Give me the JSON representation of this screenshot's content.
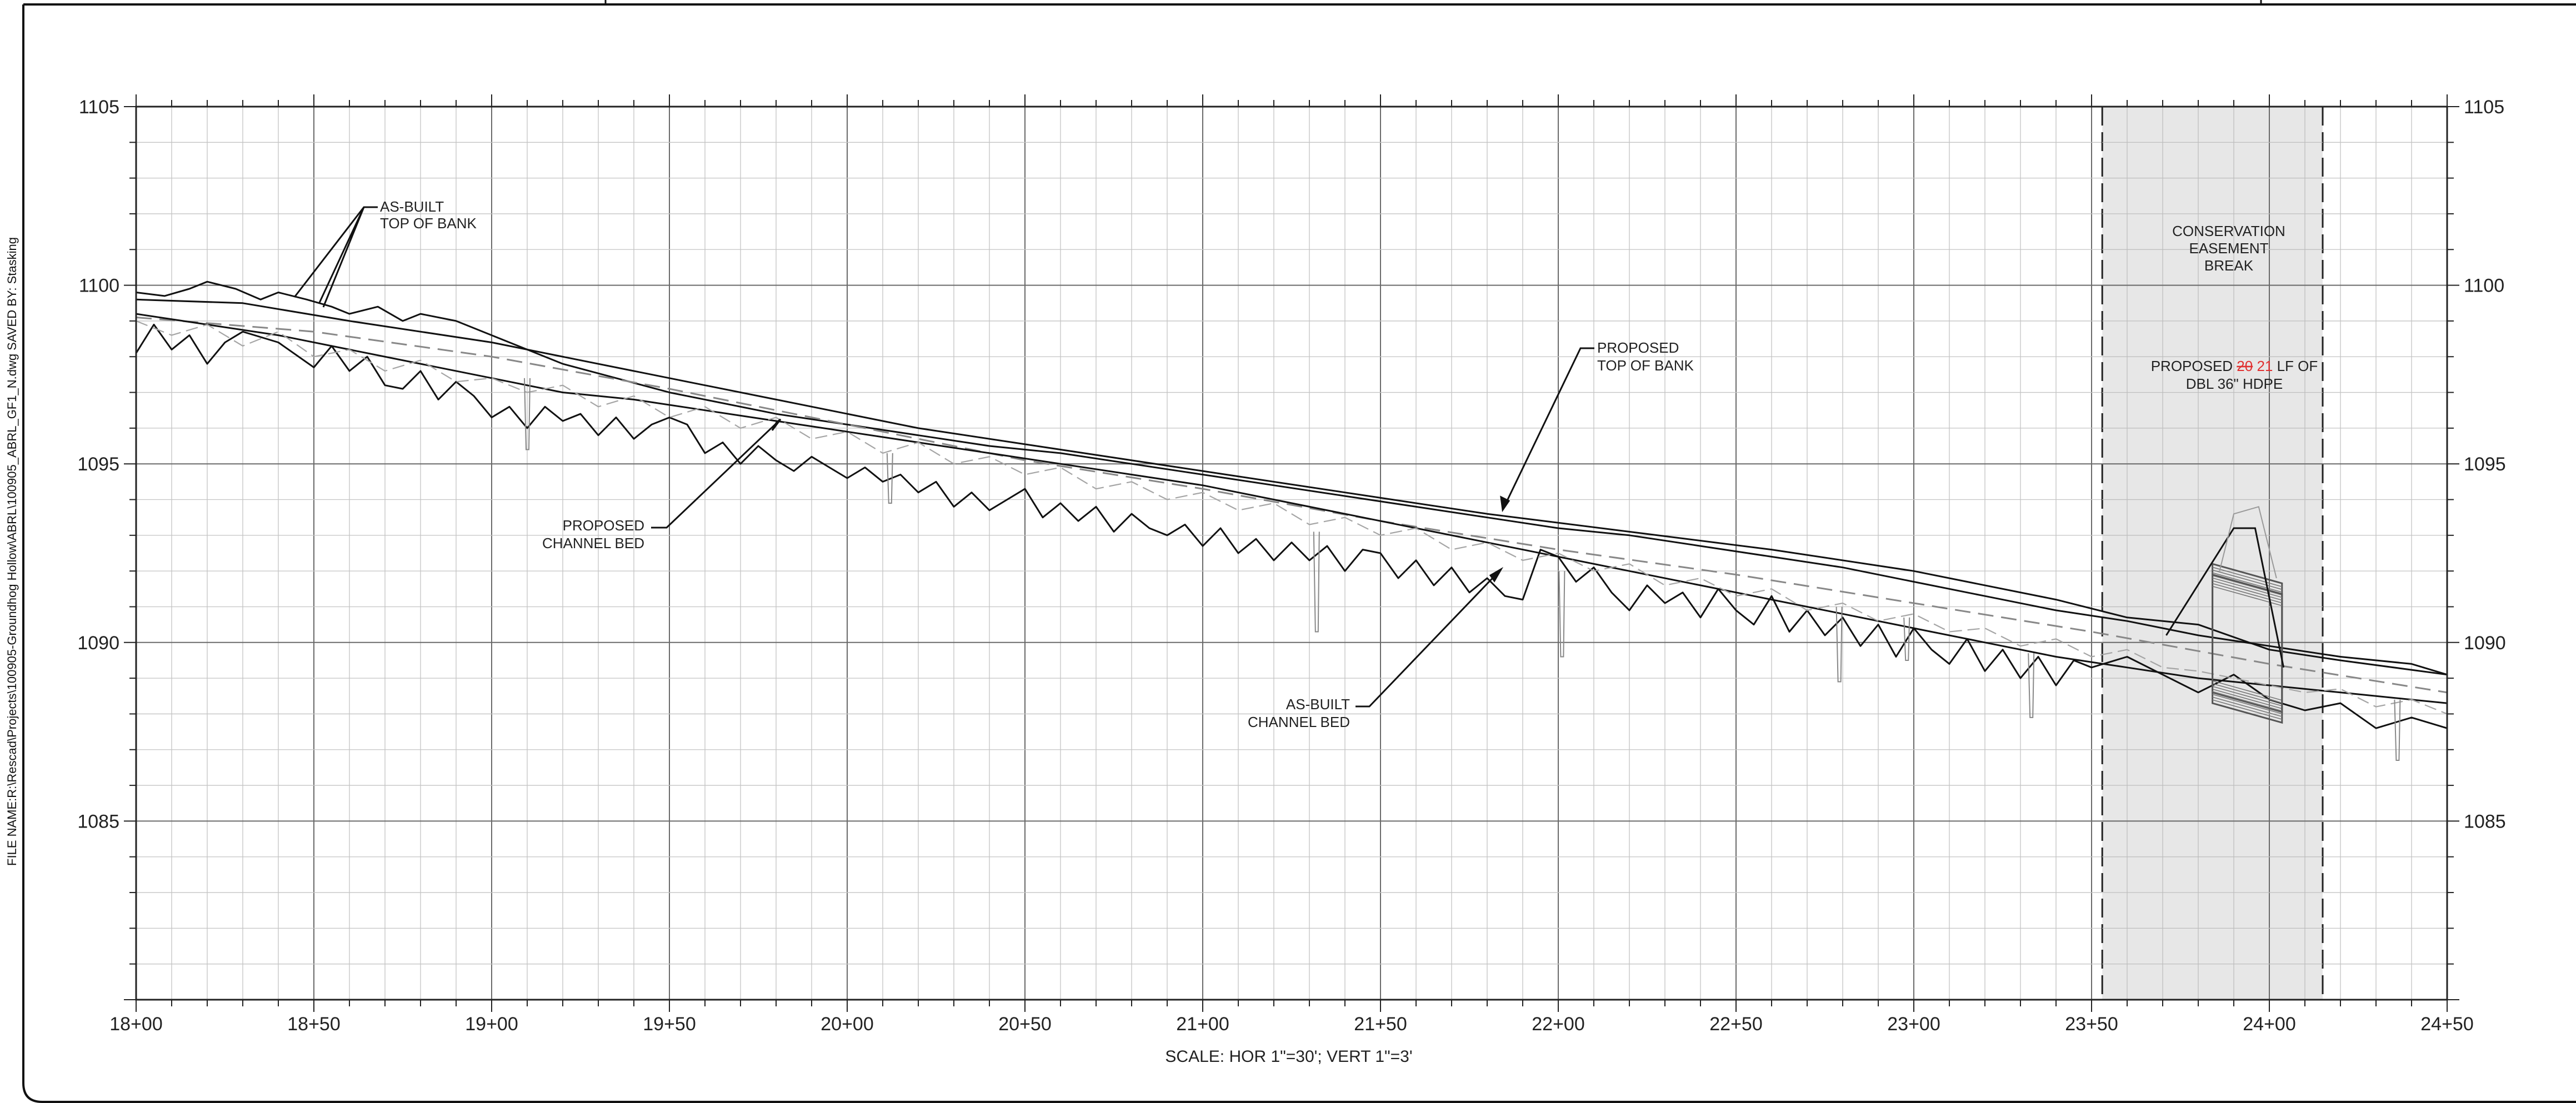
{
  "sidebar_text": "FILE NAME:R:\\Rescad\\Projects\\100905-Groundhog Hollow\\ABRL\\100905_ABRL_GF1_N.dwg SAVED BY: Stasking",
  "scale_note": "SCALE: HOR 1\"=30'; VERT 1\"=3'",
  "easement": {
    "line1": "CONSERVATION",
    "line2": "EASEMENT",
    "line3": "BREAK",
    "pipe_prefix": "PROPOSED ",
    "pipe_old": "20",
    "pipe_new": "21",
    "pipe_suffix": " LF OF",
    "pipe_line2": "DBL 36\" HDPE",
    "redline_color": "#e03030",
    "fill_color": "#e3e3e3"
  },
  "callouts": {
    "asbuilt_top": {
      "line1": "AS-BUILT",
      "line2": "TOP OF BANK"
    },
    "proposed_top": {
      "line1": "PROPOSED",
      "line2": "TOP OF BANK"
    },
    "proposed_bed": {
      "line1": "PROPOSED",
      "line2": "CHANNEL BED"
    },
    "asbuilt_bed": {
      "line1": "AS-BUILT",
      "line2": "CHANNEL BED"
    }
  },
  "chart_data": {
    "type": "line",
    "xlabel": "",
    "ylabel": "",
    "xlim": [
      1800,
      2450
    ],
    "ylim": [
      1080,
      1105
    ],
    "x_ticks": [
      {
        "v": 1800,
        "label": "18+00"
      },
      {
        "v": 1850,
        "label": "18+50"
      },
      {
        "v": 1900,
        "label": "19+00"
      },
      {
        "v": 1950,
        "label": "19+50"
      },
      {
        "v": 2000,
        "label": "20+00"
      },
      {
        "v": 2050,
        "label": "20+50"
      },
      {
        "v": 2100,
        "label": "21+00"
      },
      {
        "v": 2150,
        "label": "21+50"
      },
      {
        "v": 2200,
        "label": "22+00"
      },
      {
        "v": 2250,
        "label": "22+50"
      },
      {
        "v": 2300,
        "label": "23+00"
      },
      {
        "v": 2350,
        "label": "23+50"
      },
      {
        "v": 2400,
        "label": "24+00"
      },
      {
        "v": 2450,
        "label": "24+50"
      }
    ],
    "y_ticks": [
      {
        "v": 1085,
        "label": "1085"
      },
      {
        "v": 1090,
        "label": "1090"
      },
      {
        "v": 1095,
        "label": "1095"
      },
      {
        "v": 1100,
        "label": "1100"
      },
      {
        "v": 1105,
        "label": "1105"
      }
    ],
    "grid": true,
    "easement_range": [
      2353,
      2415
    ],
    "series": [
      {
        "key": "asbuilt_top_bank",
        "style": "solid",
        "x": [
          1800,
          1808,
          1815,
          1820,
          1828,
          1835,
          1840,
          1848,
          1855,
          1860,
          1868,
          1875,
          1880,
          1890,
          1900,
          1910,
          1920,
          1935,
          1950,
          1965,
          1980,
          2000,
          2020,
          2040,
          2060,
          2080,
          2100,
          2120,
          2140,
          2160,
          2180,
          2200,
          2220,
          2240,
          2260,
          2280,
          2300,
          2320,
          2340,
          2360,
          2380,
          2400,
          2420,
          2440,
          2450
        ],
        "y": [
          1099.8,
          1099.7,
          1099.9,
          1100.1,
          1099.9,
          1099.6,
          1099.8,
          1099.6,
          1099.4,
          1099.2,
          1099.4,
          1099.0,
          1099.2,
          1099.0,
          1098.6,
          1098.2,
          1097.8,
          1097.4,
          1097.0,
          1096.7,
          1096.4,
          1096.1,
          1095.8,
          1095.5,
          1095.3,
          1095.0,
          1094.7,
          1094.4,
          1094.1,
          1093.8,
          1093.5,
          1093.2,
          1093.0,
          1092.7,
          1092.4,
          1092.1,
          1091.7,
          1091.3,
          1090.9,
          1090.6,
          1090.2,
          1089.9,
          1089.6,
          1089.4,
          1089.1
        ]
      },
      {
        "key": "proposed_top_bank",
        "style": "solid",
        "x": [
          1800,
          1830,
          1860,
          1900,
          1940,
          1980,
          2020,
          2060,
          2100,
          2140,
          2180,
          2220,
          2260,
          2300,
          2340,
          2360,
          2380,
          2400,
          2420,
          2450
        ],
        "y": [
          1099.6,
          1099.5,
          1099.0,
          1098.4,
          1097.6,
          1096.8,
          1096.0,
          1095.4,
          1094.8,
          1094.2,
          1093.6,
          1093.1,
          1092.6,
          1092.0,
          1091.2,
          1090.7,
          1090.5,
          1089.8,
          1089.5,
          1089.1
        ]
      },
      {
        "key": "centerline_dashed",
        "style": "dashed",
        "x": [
          1800,
          1850,
          1900,
          1950,
          2000,
          2050,
          2100,
          2150,
          2200,
          2250,
          2300,
          2350,
          2400,
          2450
        ],
        "y": [
          1099.1,
          1098.7,
          1098.0,
          1097.1,
          1096.1,
          1095.1,
          1094.3,
          1093.4,
          1092.6,
          1091.9,
          1091.1,
          1090.3,
          1089.4,
          1088.6
        ]
      },
      {
        "key": "asbuilt_channel_bed",
        "style": "solid",
        "x": [
          1800,
          1805,
          1810,
          1815,
          1820,
          1825,
          1830,
          1840,
          1850,
          1855,
          1860,
          1865,
          1870,
          1875,
          1880,
          1885,
          1890,
          1895,
          1900,
          1905,
          1910,
          1915,
          1920,
          1925,
          1930,
          1935,
          1940,
          1945,
          1950,
          1955,
          1960,
          1965,
          1970,
          1975,
          1980,
          1985,
          1990,
          1995,
          2000,
          2005,
          2010,
          2015,
          2020,
          2025,
          2030,
          2035,
          2040,
          2045,
          2050,
          2055,
          2060,
          2065,
          2070,
          2075,
          2080,
          2085,
          2090,
          2095,
          2100,
          2105,
          2110,
          2115,
          2120,
          2125,
          2130,
          2135,
          2140,
          2145,
          2150,
          2155,
          2160,
          2165,
          2170,
          2175,
          2180,
          2185,
          2190,
          2195,
          2200,
          2205,
          2210,
          2215,
          2220,
          2225,
          2230,
          2235,
          2240,
          2245,
          2250,
          2255,
          2260,
          2265,
          2270,
          2275,
          2280,
          2285,
          2290,
          2295,
          2300,
          2305,
          2310,
          2315,
          2320,
          2325,
          2330,
          2335,
          2340,
          2345,
          2350,
          2360,
          2370,
          2380,
          2390,
          2400,
          2410,
          2420,
          2430,
          2440,
          2450
        ],
        "y": [
          1098.1,
          1098.9,
          1098.2,
          1098.6,
          1097.8,
          1098.4,
          1098.7,
          1098.4,
          1097.7,
          1098.3,
          1097.6,
          1098.0,
          1097.2,
          1097.1,
          1097.6,
          1096.8,
          1097.3,
          1096.9,
          1096.3,
          1096.6,
          1096.0,
          1096.6,
          1096.2,
          1096.4,
          1095.8,
          1096.3,
          1095.7,
          1096.1,
          1096.3,
          1096.1,
          1095.3,
          1095.6,
          1095.0,
          1095.5,
          1095.1,
          1094.8,
          1095.2,
          1094.9,
          1094.6,
          1094.9,
          1094.5,
          1094.7,
          1094.2,
          1094.5,
          1093.8,
          1094.2,
          1093.7,
          1094.0,
          1094.3,
          1093.5,
          1093.9,
          1093.4,
          1093.8,
          1093.1,
          1093.6,
          1093.2,
          1093.0,
          1093.3,
          1092.7,
          1093.2,
          1092.5,
          1092.9,
          1092.3,
          1092.8,
          1092.3,
          1092.7,
          1092.0,
          1092.6,
          1092.5,
          1091.8,
          1092.3,
          1091.6,
          1092.1,
          1091.4,
          1091.8,
          1091.3,
          1091.2,
          1092.6,
          1092.4,
          1091.7,
          1092.1,
          1091.4,
          1090.9,
          1091.6,
          1091.1,
          1091.4,
          1090.7,
          1091.5,
          1090.9,
          1090.5,
          1091.3,
          1090.3,
          1090.9,
          1090.2,
          1090.7,
          1089.9,
          1090.5,
          1089.6,
          1090.4,
          1089.8,
          1089.4,
          1090.1,
          1089.2,
          1089.8,
          1089.0,
          1089.6,
          1088.8,
          1089.5,
          1089.3,
          1089.6,
          1089.1,
          1088.6,
          1089.1,
          1088.4,
          1088.1,
          1088.3,
          1087.6,
          1087.9,
          1087.6
        ]
      },
      {
        "key": "proposed_channel_bed",
        "style": "solid",
        "x": [
          1800,
          1820,
          1840,
          1860,
          1880,
          1900,
          1920,
          1940,
          1960,
          1980,
          2000,
          2020,
          2040,
          2060,
          2080,
          2100,
          2120,
          2140,
          2160,
          2180,
          2200,
          2220,
          2240,
          2260,
          2280,
          2300,
          2320,
          2340,
          2360,
          2380,
          2400,
          2420,
          2440,
          2450
        ],
        "y": [
          1099.2,
          1098.9,
          1098.6,
          1098.2,
          1097.8,
          1097.4,
          1097.0,
          1096.8,
          1096.5,
          1096.2,
          1095.9,
          1095.6,
          1095.3,
          1095.0,
          1094.7,
          1094.4,
          1094.0,
          1093.6,
          1093.2,
          1092.8,
          1092.4,
          1092.0,
          1091.6,
          1091.2,
          1090.8,
          1090.4,
          1090.0,
          1089.6,
          1089.3,
          1089.0,
          1088.8,
          1088.6,
          1088.4,
          1088.3
        ]
      },
      {
        "key": "survey_light_dashed",
        "style": "light",
        "x": [
          1800,
          1810,
          1820,
          1830,
          1840,
          1850,
          1860,
          1870,
          1880,
          1890,
          1900,
          1910,
          1920,
          1930,
          1940,
          1950,
          1960,
          1970,
          1980,
          1990,
          2000,
          2010,
          2020,
          2030,
          2040,
          2050,
          2060,
          2070,
          2080,
          2090,
          2100,
          2110,
          2120,
          2130,
          2140,
          2150,
          2160,
          2170,
          2180,
          2190,
          2200,
          2210,
          2220,
          2230,
          2240,
          2250,
          2260,
          2270,
          2280,
          2290,
          2300,
          2310,
          2320,
          2330,
          2340,
          2350,
          2360,
          2370,
          2380,
          2390,
          2400,
          2410,
          2420,
          2430,
          2440,
          2450
        ],
        "y": [
          1099.0,
          1098.6,
          1098.9,
          1098.3,
          1098.7,
          1098.0,
          1098.2,
          1097.6,
          1097.9,
          1097.3,
          1097.4,
          1097.0,
          1097.2,
          1096.6,
          1096.9,
          1096.3,
          1096.6,
          1096.0,
          1096.3,
          1095.7,
          1095.9,
          1095.3,
          1095.6,
          1095.0,
          1095.2,
          1094.7,
          1094.9,
          1094.3,
          1094.5,
          1094.0,
          1094.2,
          1093.7,
          1093.9,
          1093.3,
          1093.5,
          1093.0,
          1093.2,
          1092.6,
          1092.8,
          1092.3,
          1092.5,
          1092.0,
          1092.2,
          1091.6,
          1091.8,
          1091.3,
          1091.5,
          1090.9,
          1091.1,
          1090.6,
          1090.8,
          1090.3,
          1090.4,
          1089.9,
          1090.1,
          1089.6,
          1089.8,
          1089.3,
          1089.2,
          1089.0,
          1088.8,
          1088.6,
          1088.7,
          1088.2,
          1088.4,
          1088.0
        ]
      }
    ],
    "spikes": [
      {
        "x": 1910,
        "y": 1097.4,
        "depth": 2.0
      },
      {
        "x": 2012,
        "y": 1095.3,
        "depth": 1.4
      },
      {
        "x": 2132,
        "y": 1093.1,
        "depth": 2.8
      },
      {
        "x": 2201,
        "y": 1092.0,
        "depth": 2.4
      },
      {
        "x": 2279,
        "y": 1091.0,
        "depth": 2.1
      },
      {
        "x": 2298,
        "y": 1090.7,
        "depth": 1.2
      },
      {
        "x": 2333,
        "y": 1089.7,
        "depth": 1.8
      },
      {
        "x": 2436,
        "y": 1088.4,
        "depth": 1.7
      }
    ]
  }
}
